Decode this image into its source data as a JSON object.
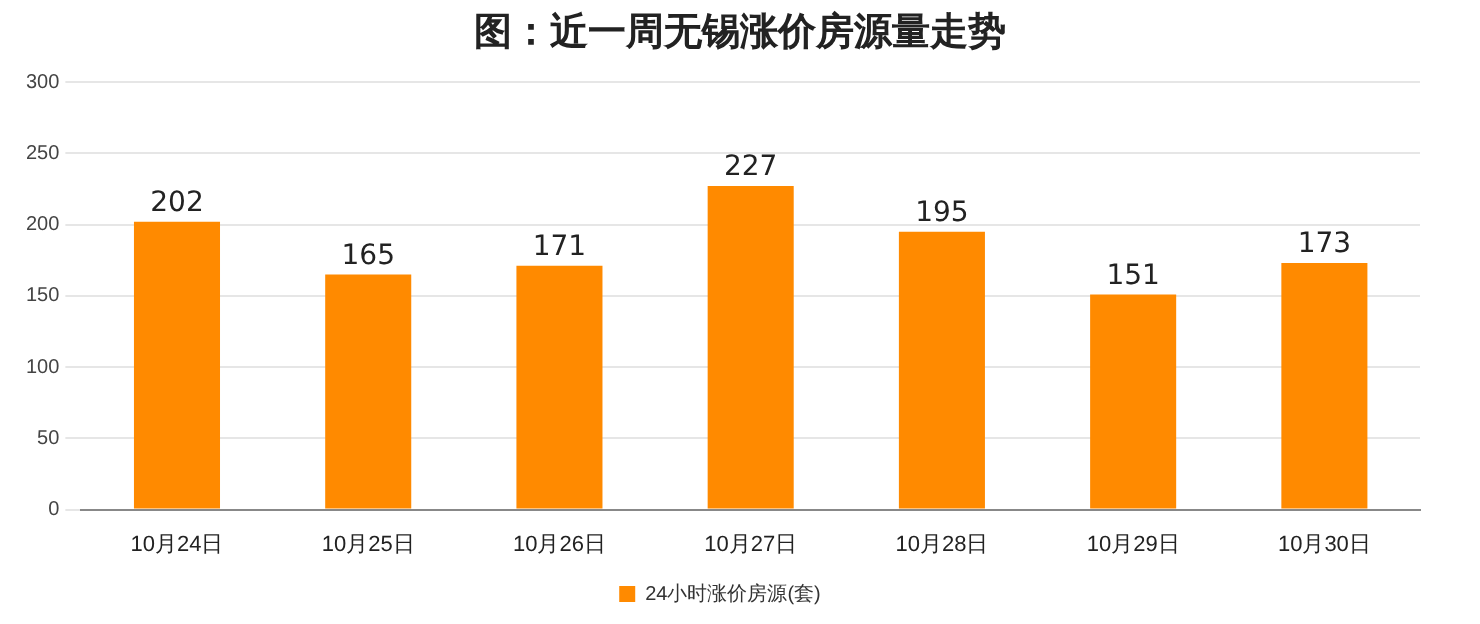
{
  "chart_data": {
    "type": "bar",
    "title": "图：近一周无锡涨价房源量走势",
    "categories": [
      "10月24日",
      "10月25日",
      "10月26日",
      "10月27日",
      "10月28日",
      "10月29日",
      "10月30日"
    ],
    "series": [
      {
        "name": "24小时涨价房源(套)",
        "color": "#ff8a00",
        "values": [
          202,
          165,
          171,
          227,
          195,
          151,
          173
        ]
      }
    ],
    "ylim": [
      0,
      300
    ],
    "yticks": [
      0,
      50,
      100,
      150,
      200,
      250,
      300
    ],
    "grid": "y",
    "legend": "bottom",
    "data_labels": true
  }
}
